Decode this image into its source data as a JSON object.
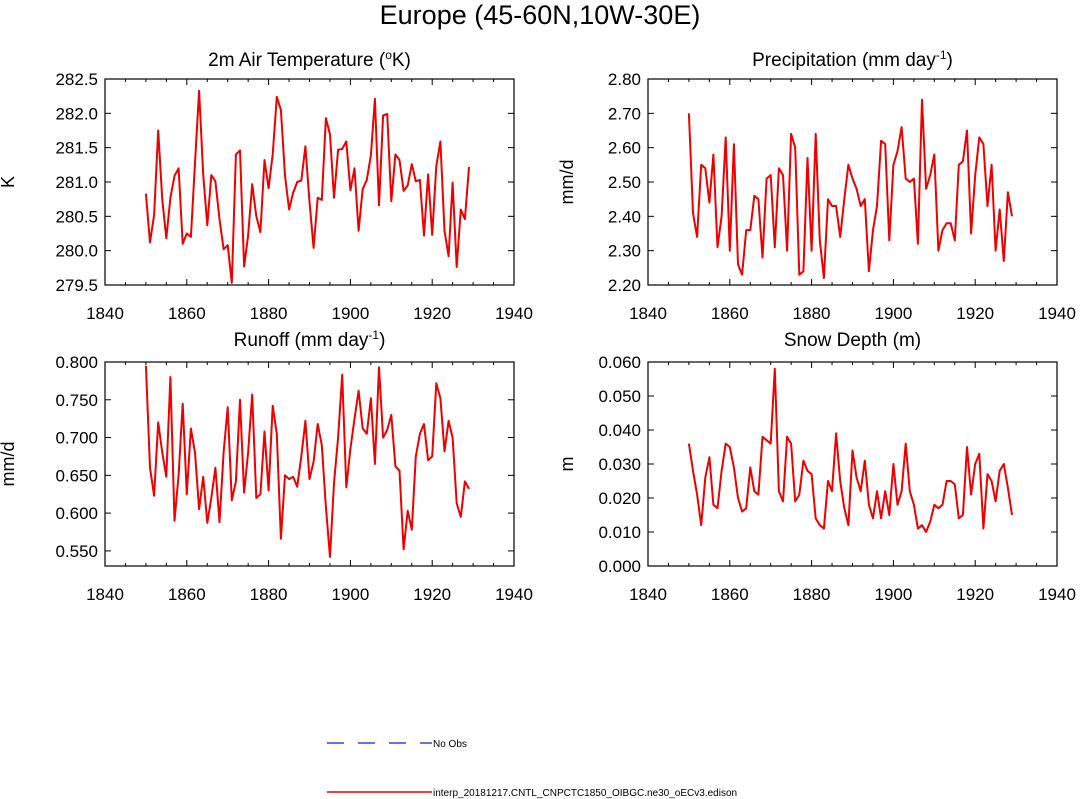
{
  "title": "Europe (45-60N,10W-30E)",
  "legend": [
    {
      "label": "No Obs",
      "color": "#3344dd",
      "style": "dashed"
    },
    {
      "label": "interp_20181217.CNTL_CNPCTC1850_OIBGC.ne30_oECv3.edison",
      "color": "#ee0000",
      "style": "solid"
    }
  ],
  "chart_data": [
    {
      "type": "line",
      "title": "2m Air Temperature (",
      "title_sup": "o",
      "title_suffix": "K)",
      "xlabel": "",
      "ylabel": "K",
      "xlim": [
        1840,
        1940
      ],
      "ylim": [
        279.5,
        282.5
      ],
      "xticks": [
        1840,
        1860,
        1880,
        1900,
        1920,
        1940
      ],
      "yticks": [
        279.5,
        280.0,
        280.5,
        281.0,
        281.5,
        282.0,
        282.5
      ],
      "ytick_labels": [
        "279.5",
        "280.0",
        "280.5",
        "281.0",
        "281.5",
        "282.0",
        "282.5"
      ],
      "series": [
        {
          "name": "interp_20181217.CNTL_CNPCTC1850_OIBGC.ne30_oECv3.edison",
          "color": "#ee0000",
          "x": [
            1850,
            1851,
            1852,
            1853,
            1854,
            1855,
            1856,
            1857,
            1858,
            1859,
            1860,
            1861,
            1862,
            1863,
            1864,
            1865,
            1866,
            1867,
            1868,
            1869,
            1870,
            1871,
            1872,
            1873,
            1874,
            1875,
            1876,
            1877,
            1878,
            1879,
            1880,
            1881,
            1882,
            1883,
            1884,
            1885,
            1886,
            1887,
            1888,
            1889,
            1890,
            1891,
            1892,
            1893,
            1894,
            1895,
            1896,
            1897,
            1898,
            1899,
            1900,
            1901,
            1902,
            1903,
            1904,
            1905,
            1906,
            1907,
            1908,
            1909,
            1910,
            1911,
            1912,
            1913,
            1914,
            1915,
            1916,
            1917,
            1918,
            1919,
            1920,
            1921,
            1922,
            1923,
            1924,
            1925,
            1926,
            1927,
            1928,
            1929
          ],
          "y": [
            280.83,
            280.12,
            280.52,
            281.75,
            280.74,
            280.18,
            280.77,
            281.09,
            281.2,
            280.1,
            280.25,
            280.2,
            281.28,
            282.33,
            281.11,
            280.37,
            281.1,
            281.01,
            280.46,
            280.02,
            280.08,
            279.53,
            281.4,
            281.46,
            279.77,
            280.22,
            280.97,
            280.5,
            280.27,
            281.32,
            280.91,
            281.4,
            282.24,
            282.05,
            281.09,
            280.6,
            280.84,
            281.0,
            281.02,
            281.52,
            280.71,
            280.04,
            280.77,
            280.74,
            281.93,
            281.69,
            280.77,
            281.47,
            281.48,
            281.59,
            280.88,
            281.2,
            280.29,
            280.9,
            281.03,
            281.39,
            282.21,
            280.66,
            281.97,
            281.99,
            280.72,
            281.4,
            281.32,
            280.87,
            280.95,
            281.26,
            281.01,
            281.03,
            280.22,
            281.11,
            280.23,
            281.23,
            281.59,
            280.29,
            279.92,
            280.99,
            279.76,
            280.6,
            280.46,
            281.22
          ]
        }
      ]
    },
    {
      "type": "line",
      "title": "Precipitation (mm day",
      "title_sup": "-1",
      "title_suffix": ")",
      "xlabel": "",
      "ylabel": "mm/d",
      "xlim": [
        1840,
        1940
      ],
      "ylim": [
        2.2,
        2.8
      ],
      "xticks": [
        1840,
        1860,
        1880,
        1900,
        1920,
        1940
      ],
      "yticks": [
        2.2,
        2.3,
        2.4,
        2.5,
        2.6,
        2.7,
        2.8
      ],
      "ytick_labels": [
        "2.20",
        "2.30",
        "2.40",
        "2.50",
        "2.60",
        "2.70",
        "2.80"
      ],
      "series": [
        {
          "name": "interp_20181217.CNTL_CNPCTC1850_OIBGC.ne30_oECv3.edison",
          "color": "#ee0000",
          "x": [
            1850,
            1851,
            1852,
            1853,
            1854,
            1855,
            1856,
            1857,
            1858,
            1859,
            1860,
            1861,
            1862,
            1863,
            1864,
            1865,
            1866,
            1867,
            1868,
            1869,
            1870,
            1871,
            1872,
            1873,
            1874,
            1875,
            1876,
            1877,
            1878,
            1879,
            1880,
            1881,
            1882,
            1883,
            1884,
            1885,
            1886,
            1887,
            1888,
            1889,
            1890,
            1891,
            1892,
            1893,
            1894,
            1895,
            1896,
            1897,
            1898,
            1899,
            1900,
            1901,
            1902,
            1903,
            1904,
            1905,
            1906,
            1907,
            1908,
            1909,
            1910,
            1911,
            1912,
            1913,
            1914,
            1915,
            1916,
            1917,
            1918,
            1919,
            1920,
            1921,
            1922,
            1923,
            1924,
            1925,
            1926,
            1927,
            1928,
            1929
          ],
          "y": [
            2.7,
            2.41,
            2.34,
            2.55,
            2.54,
            2.44,
            2.58,
            2.31,
            2.4,
            2.63,
            2.3,
            2.61,
            2.26,
            2.23,
            2.36,
            2.36,
            2.46,
            2.45,
            2.28,
            2.51,
            2.52,
            2.31,
            2.54,
            2.52,
            2.3,
            2.64,
            2.6,
            2.23,
            2.24,
            2.57,
            2.3,
            2.64,
            2.33,
            2.22,
            2.45,
            2.43,
            2.43,
            2.34,
            2.45,
            2.55,
            2.51,
            2.48,
            2.43,
            2.45,
            2.24,
            2.36,
            2.43,
            2.62,
            2.61,
            2.33,
            2.55,
            2.59,
            2.66,
            2.51,
            2.5,
            2.51,
            2.32,
            2.74,
            2.48,
            2.52,
            2.58,
            2.3,
            2.36,
            2.38,
            2.38,
            2.33,
            2.55,
            2.56,
            2.65,
            2.35,
            2.52,
            2.63,
            2.61,
            2.43,
            2.55,
            2.3,
            2.42,
            2.27,
            2.47,
            2.4
          ]
        }
      ]
    },
    {
      "type": "line",
      "title": "Runoff (mm day",
      "title_sup": "-1",
      "title_suffix": ")",
      "xlabel": "",
      "ylabel": "mm/d",
      "xlim": [
        1840,
        1940
      ],
      "ylim": [
        0.53,
        0.8
      ],
      "xticks": [
        1840,
        1860,
        1880,
        1900,
        1920,
        1940
      ],
      "yticks": [
        0.55,
        0.6,
        0.65,
        0.7,
        0.75,
        0.8
      ],
      "ytick_labels": [
        "0.550",
        "0.600",
        "0.650",
        "0.700",
        "0.750",
        "0.800"
      ],
      "series": [
        {
          "name": "interp_20181217.CNTL_CNPCTC1850_OIBGC.ne30_oECv3.edison",
          "color": "#ee0000",
          "x": [
            1850,
            1851,
            1852,
            1853,
            1854,
            1855,
            1856,
            1857,
            1858,
            1859,
            1860,
            1861,
            1862,
            1863,
            1864,
            1865,
            1866,
            1867,
            1868,
            1869,
            1870,
            1871,
            1872,
            1873,
            1874,
            1875,
            1876,
            1877,
            1878,
            1879,
            1880,
            1881,
            1882,
            1883,
            1884,
            1885,
            1886,
            1887,
            1888,
            1889,
            1890,
            1891,
            1892,
            1893,
            1894,
            1895,
            1896,
            1897,
            1898,
            1899,
            1900,
            1901,
            1902,
            1903,
            1904,
            1905,
            1906,
            1907,
            1908,
            1909,
            1910,
            1911,
            1912,
            1913,
            1914,
            1915,
            1916,
            1917,
            1918,
            1919,
            1920,
            1921,
            1922,
            1923,
            1924,
            1925,
            1926,
            1927,
            1928,
            1929
          ],
          "y": [
            0.795,
            0.66,
            0.623,
            0.72,
            0.68,
            0.648,
            0.78,
            0.59,
            0.65,
            0.745,
            0.625,
            0.712,
            0.68,
            0.605,
            0.648,
            0.587,
            0.62,
            0.66,
            0.588,
            0.68,
            0.74,
            0.617,
            0.642,
            0.75,
            0.627,
            0.68,
            0.757,
            0.62,
            0.625,
            0.708,
            0.63,
            0.742,
            0.705,
            0.566,
            0.65,
            0.645,
            0.648,
            0.635,
            0.675,
            0.722,
            0.645,
            0.668,
            0.718,
            0.69,
            0.608,
            0.542,
            0.64,
            0.7,
            0.783,
            0.634,
            0.685,
            0.725,
            0.762,
            0.712,
            0.705,
            0.752,
            0.665,
            0.793,
            0.7,
            0.71,
            0.73,
            0.662,
            0.656,
            0.552,
            0.603,
            0.578,
            0.675,
            0.705,
            0.718,
            0.67,
            0.675,
            0.772,
            0.752,
            0.682,
            0.722,
            0.7,
            0.613,
            0.595,
            0.642,
            0.632
          ]
        }
      ]
    },
    {
      "type": "line",
      "title": "Snow Depth (m)",
      "title_sup": "",
      "title_suffix": "",
      "xlabel": "",
      "ylabel": "m",
      "xlim": [
        1840,
        1940
      ],
      "ylim": [
        0.0,
        0.06
      ],
      "xticks": [
        1840,
        1860,
        1880,
        1900,
        1920,
        1940
      ],
      "yticks": [
        0.0,
        0.01,
        0.02,
        0.03,
        0.04,
        0.05,
        0.06
      ],
      "ytick_labels": [
        "0.000",
        "0.010",
        "0.020",
        "0.030",
        "0.040",
        "0.050",
        "0.060"
      ],
      "series": [
        {
          "name": "interp_20181217.CNTL_CNPCTC1850_OIBGC.ne30_oECv3.edison",
          "color": "#ee0000",
          "x": [
            1850,
            1851,
            1852,
            1853,
            1854,
            1855,
            1856,
            1857,
            1858,
            1859,
            1860,
            1861,
            1862,
            1863,
            1864,
            1865,
            1866,
            1867,
            1868,
            1869,
            1870,
            1871,
            1872,
            1873,
            1874,
            1875,
            1876,
            1877,
            1878,
            1879,
            1880,
            1881,
            1882,
            1883,
            1884,
            1885,
            1886,
            1887,
            1888,
            1889,
            1890,
            1891,
            1892,
            1893,
            1894,
            1895,
            1896,
            1897,
            1898,
            1899,
            1900,
            1901,
            1902,
            1903,
            1904,
            1905,
            1906,
            1907,
            1908,
            1909,
            1910,
            1911,
            1912,
            1913,
            1914,
            1915,
            1916,
            1917,
            1918,
            1919,
            1920,
            1921,
            1922,
            1923,
            1924,
            1925,
            1926,
            1927,
            1928,
            1929
          ],
          "y": [
            0.036,
            0.028,
            0.021,
            0.012,
            0.026,
            0.032,
            0.018,
            0.017,
            0.028,
            0.036,
            0.035,
            0.029,
            0.02,
            0.016,
            0.017,
            0.029,
            0.022,
            0.021,
            0.038,
            0.037,
            0.036,
            0.058,
            0.022,
            0.019,
            0.038,
            0.036,
            0.019,
            0.021,
            0.031,
            0.028,
            0.027,
            0.014,
            0.012,
            0.011,
            0.025,
            0.022,
            0.039,
            0.025,
            0.017,
            0.012,
            0.034,
            0.026,
            0.022,
            0.031,
            0.018,
            0.014,
            0.022,
            0.014,
            0.022,
            0.015,
            0.03,
            0.018,
            0.022,
            0.036,
            0.022,
            0.018,
            0.011,
            0.012,
            0.01,
            0.013,
            0.018,
            0.017,
            0.018,
            0.025,
            0.025,
            0.024,
            0.014,
            0.015,
            0.035,
            0.021,
            0.03,
            0.033,
            0.011,
            0.027,
            0.025,
            0.019,
            0.028,
            0.03,
            0.023,
            0.015
          ]
        }
      ]
    }
  ]
}
